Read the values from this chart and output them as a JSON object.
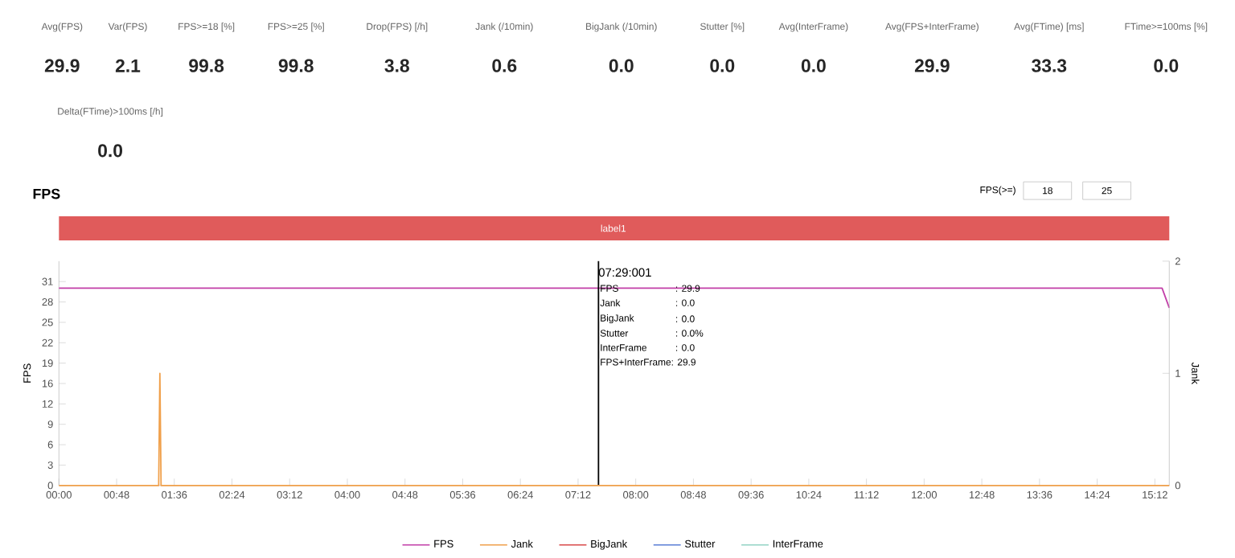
{
  "chart_data": [
    {
      "type": "other",
      "annotations": [
        "Avg(FPS)",
        "29.9",
        "Var(FPS)",
        "2.1",
        "FPS>=18 [%]",
        "99.8",
        "FPS>=25 [%]",
        "99.8",
        "Drop(FPS) [/h]",
        "3.8",
        "Jank (/10min)",
        "0.6",
        "BigJank (/10min)",
        "0.0",
        "Stutter [%]",
        "0.0",
        "Avg(InterFrame)",
        "0.0",
        "Avg(FPS+InterFrame)",
        "29.9",
        "Avg(FTime) [ms]",
        "33.3",
        "FTime>=100ms [%]",
        "0.0",
        "Delta(FTime)>100ms [/h]",
        "0.0"
      ]
    },
    {
      "type": "line",
      "title": "FPS",
      "ylabel": "FPS",
      "y2label": "Jank",
      "xlim": [
        0,
        924
      ],
      "ylim": [
        0,
        34.1
      ],
      "y2lim": [
        0,
        2
      ],
      "xticks": [
        {
          "value": 0,
          "label": "00:00"
        },
        {
          "value": 48,
          "label": "00:48"
        },
        {
          "value": 96,
          "label": "01:36"
        },
        {
          "value": 144,
          "label": "02:24"
        },
        {
          "value": 192,
          "label": "03:12"
        },
        {
          "value": 240,
          "label": "04:00"
        },
        {
          "value": 288,
          "label": "04:48"
        },
        {
          "value": 336,
          "label": "05:36"
        },
        {
          "value": 384,
          "label": "06:24"
        },
        {
          "value": 432,
          "label": "07:12"
        },
        {
          "value": 480,
          "label": "08:00"
        },
        {
          "value": 528,
          "label": "08:48"
        },
        {
          "value": 576,
          "label": "09:36"
        },
        {
          "value": 624,
          "label": "10:24"
        },
        {
          "value": 672,
          "label": "11:12"
        },
        {
          "value": 720,
          "label": "12:00"
        },
        {
          "value": 768,
          "label": "12:48"
        },
        {
          "value": 816,
          "label": "13:36"
        },
        {
          "value": 864,
          "label": "14:24"
        },
        {
          "value": 912,
          "label": "15:12"
        }
      ],
      "yticks": [
        0,
        {
          "value": 3.1,
          "label": "3"
        },
        {
          "value": 6.2,
          "label": "6"
        },
        {
          "value": 9.3,
          "label": "9"
        },
        {
          "value": 12.4,
          "label": "12"
        },
        {
          "value": 15.5,
          "label": "16"
        },
        {
          "value": 18.6,
          "label": "19"
        },
        {
          "value": 21.7,
          "label": "22"
        },
        {
          "value": 24.8,
          "label": "25"
        },
        {
          "value": 27.9,
          "label": "28"
        },
        31
      ],
      "y2ticks": [
        0,
        1,
        2
      ],
      "series": [
        {
          "name": "FPS",
          "color": "#c23fa8",
          "x": [
            0,
            84,
            900,
            918,
            924
          ],
          "values": [
            30,
            30,
            30,
            30,
            27
          ]
        },
        {
          "name": "Jank",
          "color": "#f0a04b",
          "axis": "y2",
          "x": [
            0,
            83,
            84,
            85,
            924
          ],
          "values": [
            0,
            0,
            1,
            0,
            0
          ]
        },
        {
          "name": "BigJank",
          "color": "#d94a4a",
          "axis": "y2",
          "values": [
            null,
            null
          ]
        },
        {
          "name": "Stutter",
          "color": "#5b7fd6",
          "values": [
            null,
            null
          ]
        },
        {
          "name": "InterFrame",
          "color": "#93d3c4",
          "values": [
            null,
            null
          ]
        }
      ],
      "ref_lines": [
        {
          "axis": "x",
          "value": 449,
          "color": "#000000"
        }
      ],
      "annotations": [
        "FPS(>=)",
        "18",
        "25",
        "FPS",
        ": 29.9",
        "Jank",
        ": 0.0",
        "BigJank",
        ": 0.0",
        "Stutter",
        ": 0.0%",
        "InterFrame",
        ": 0.0",
        "FPS+InterFrame: 29.9",
        "07:29:001",
        "label1"
      ],
      "legend": "bottom"
    }
  ]
}
